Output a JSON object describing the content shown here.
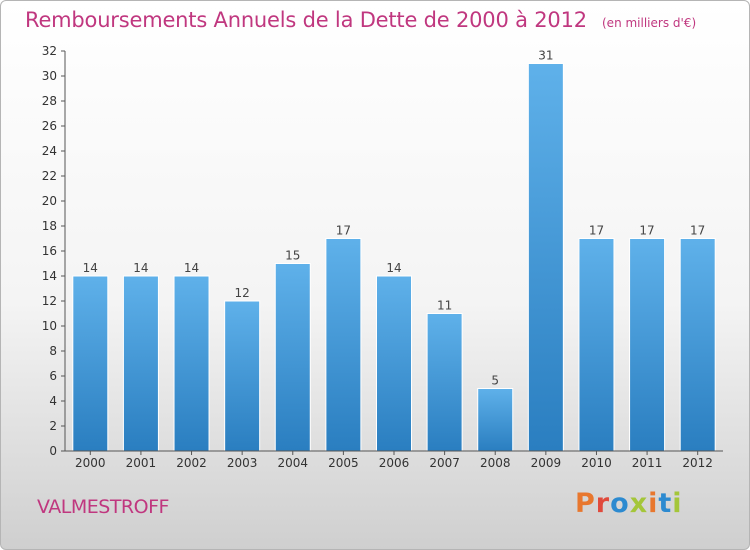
{
  "header": {
    "title": "Remboursements Annuels de la Dette de 2000 à 2012",
    "subtitle": "(en milliers d'€)"
  },
  "footer": {
    "commune": "VALMESTROFF",
    "logo_text": "Proxiti",
    "logo_colors": [
      "#e8772e",
      "#e04a3c",
      "#2c8ad0",
      "#a4c639",
      "#e8772e",
      "#2c8ad0",
      "#a4c639"
    ]
  },
  "chart_data": {
    "type": "bar",
    "categories": [
      "2000",
      "2001",
      "2002",
      "2003",
      "2004",
      "2005",
      "2006",
      "2007",
      "2008",
      "2009",
      "2010",
      "2011",
      "2012"
    ],
    "values": [
      14,
      14,
      14,
      12,
      15,
      17,
      14,
      11,
      5,
      31,
      17,
      17,
      17
    ],
    "data_labels": [
      "14",
      "14",
      "14",
      "12",
      "15",
      "17",
      "14",
      "11",
      "5",
      "31",
      "17",
      "17",
      "17"
    ],
    "yticks": [
      "0",
      "2",
      "4",
      "6",
      "8",
      "10",
      "12",
      "14",
      "16",
      "18",
      "20",
      "22",
      "24",
      "26",
      "28",
      "30",
      "32"
    ],
    "ylim": [
      0,
      32
    ],
    "grid": false,
    "colors": {
      "bar_top": "#5fb1ea",
      "bar_bottom": "#2a7ec0",
      "axis": "#555555"
    }
  }
}
